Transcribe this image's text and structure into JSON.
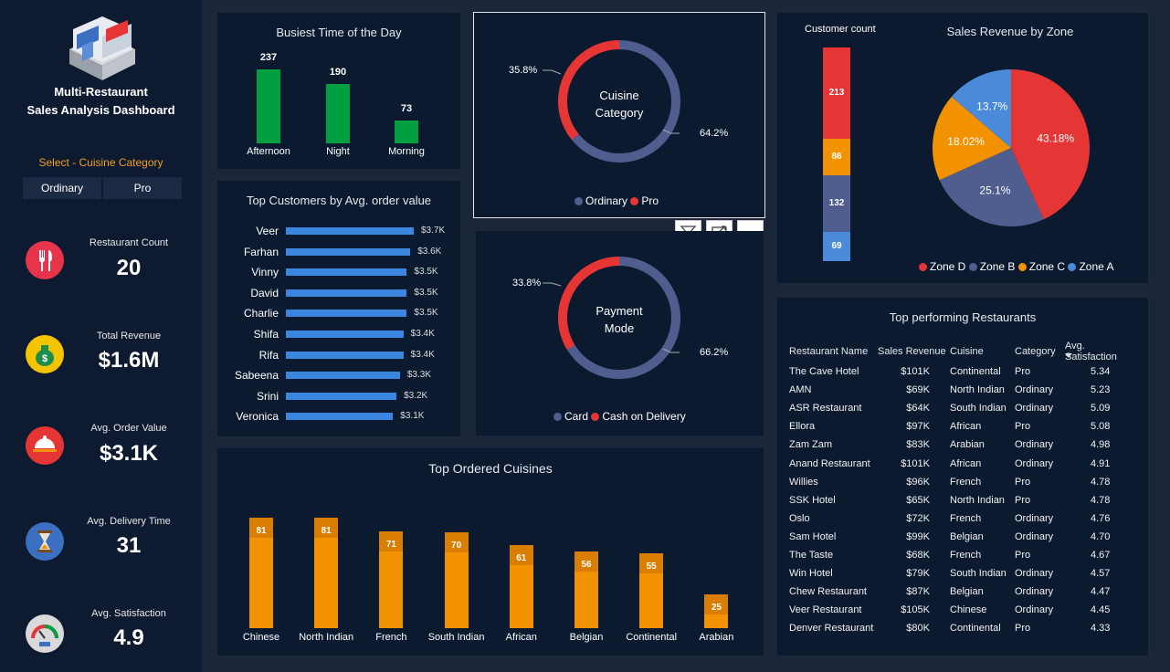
{
  "app": {
    "title_line1": "Multi-Restaurant",
    "title_line2": "Sales Analysis Dashboard"
  },
  "slicer": {
    "label": "Select - Cuisine Category",
    "options": [
      "Ordinary",
      "Pro"
    ]
  },
  "kpis": [
    {
      "label": "Restaurant Count",
      "value": "20",
      "icon": "fork-knife-icon"
    },
    {
      "label": "Total Revenue",
      "value": "$1.6M",
      "icon": "money-bag-icon"
    },
    {
      "label": "Avg. Order Value",
      "value": "$3.1K",
      "icon": "waiter-cloche-icon"
    },
    {
      "label": "Avg. Delivery Time",
      "value": "31",
      "icon": "hourglass-icon"
    },
    {
      "label": "Avg. Satisfaction",
      "value": "4.9",
      "icon": "gauge-icon"
    }
  ],
  "colors": {
    "green": "#00a040",
    "blue": "#3d86e0",
    "orange": "#f39200",
    "red": "#e63535",
    "slate": "#4f5d8f",
    "zoneA": "#4a8ad8"
  },
  "chart_data": [
    {
      "type": "bar",
      "title": "Busiest Time of the Day",
      "categories": [
        "Afternoon",
        "Night",
        "Morning"
      ],
      "values": [
        237,
        190,
        73
      ],
      "labels": [
        "237",
        "190",
        "73"
      ]
    },
    {
      "type": "bar",
      "orientation": "horizontal",
      "title": "Top Customers by Avg. order value",
      "categories": [
        "Veer",
        "Farhan",
        "Vinny",
        "David",
        "Charlie",
        "Shifa",
        "Rifa",
        "Sabeena",
        "Srini",
        "Veronica"
      ],
      "values": [
        3.7,
        3.6,
        3.5,
        3.5,
        3.5,
        3.4,
        3.4,
        3.3,
        3.2,
        3.1
      ],
      "labels": [
        "$3.7K",
        "$3.6K",
        "$3.5K",
        "$3.5K",
        "$3.5K",
        "$3.4K",
        "$3.4K",
        "$3.3K",
        "$3.2K",
        "$3.1K"
      ]
    },
    {
      "type": "pie",
      "donut": true,
      "title": "Cuisine Category",
      "title_line1": "Cuisine",
      "title_line2": "Category",
      "categories": [
        "Ordinary",
        "Pro"
      ],
      "values": [
        64.2,
        35.8
      ],
      "labels": [
        "64.2%",
        "35.8%"
      ]
    },
    {
      "type": "pie",
      "donut": true,
      "title": "Payment Mode",
      "title_line1": "Payment",
      "title_line2": "Mode",
      "categories": [
        "Card",
        "Cash on Delivery"
      ],
      "values": [
        66.2,
        33.8
      ],
      "labels": [
        "66.2%",
        "33.8%"
      ]
    },
    {
      "type": "bar",
      "stacked": true,
      "title": "Customer count",
      "categories": [
        "Zone D",
        "Zone C",
        "Zone B",
        "Zone A"
      ],
      "values": [
        213,
        86,
        132,
        69
      ],
      "labels": [
        "213",
        "86",
        "132",
        "69"
      ]
    },
    {
      "type": "pie",
      "title": "Sales Revenue by Zone",
      "categories": [
        "Zone D",
        "Zone B",
        "Zone C",
        "Zone A"
      ],
      "values": [
        43.18,
        25.1,
        18.02,
        13.7
      ],
      "labels": [
        "43.18%",
        "25.1%",
        "18.02%",
        "13.7%"
      ]
    },
    {
      "type": "bar",
      "title": "Top Ordered Cuisines",
      "categories": [
        "Chinese",
        "North Indian",
        "French",
        "South Indian",
        "African",
        "Belgian",
        "Continental",
        "Arabian"
      ],
      "values": [
        81,
        81,
        71,
        70,
        61,
        56,
        55,
        25
      ],
      "labels": [
        "81",
        "81",
        "71",
        "70",
        "61",
        "56",
        "55",
        "25"
      ]
    }
  ],
  "table": {
    "title": "Top performing Restaurants",
    "columns": [
      "Restaurant Name",
      "Sales Revenue",
      "Cuisine",
      "Category",
      "Avg. Satisfaction"
    ],
    "rows": [
      [
        "The Cave Hotel",
        "$101K",
        "Continental",
        "Pro",
        "5.34"
      ],
      [
        "AMN",
        "$69K",
        "North Indian",
        "Ordinary",
        "5.23"
      ],
      [
        "ASR Restaurant",
        "$64K",
        "South Indian",
        "Ordinary",
        "5.09"
      ],
      [
        "Ellora",
        "$97K",
        "African",
        "Pro",
        "5.08"
      ],
      [
        "Zam Zam",
        "$83K",
        "Arabian",
        "Ordinary",
        "4.98"
      ],
      [
        "Anand Restaurant",
        "$101K",
        "African",
        "Ordinary",
        "4.91"
      ],
      [
        "Willies",
        "$96K",
        "French",
        "Pro",
        "4.78"
      ],
      [
        "SSK Hotel",
        "$65K",
        "North Indian",
        "Pro",
        "4.78"
      ],
      [
        "Oslo",
        "$72K",
        "French",
        "Ordinary",
        "4.76"
      ],
      [
        "Sam Hotel",
        "$99K",
        "Belgian",
        "Ordinary",
        "4.70"
      ],
      [
        "The Taste",
        "$68K",
        "French",
        "Pro",
        "4.67"
      ],
      [
        "Win Hotel",
        "$79K",
        "South Indian",
        "Ordinary",
        "4.57"
      ],
      [
        "Chew Restaurant",
        "$87K",
        "Belgian",
        "Ordinary",
        "4.47"
      ],
      [
        "Veer Restaurant",
        "$105K",
        "Chinese",
        "Ordinary",
        "4.45"
      ],
      [
        "Denver Restaurant",
        "$80K",
        "Continental",
        "Pro",
        "4.33"
      ]
    ]
  }
}
